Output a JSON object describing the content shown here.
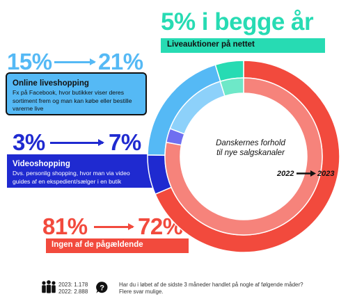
{
  "colors": {
    "teal": "#27dbb3",
    "teal_light": "#6ee8c8",
    "sky": "#55b9f5",
    "sky_light": "#8dd1fa",
    "navy": "#1f2ad0",
    "navy_light": "#6f6ff0",
    "red": "#f24a3d",
    "red_light": "#f6837b",
    "ink": "#111111"
  },
  "liveauktioner": {
    "headline": "5% i begge år",
    "label": "Liveauktioner på nettet"
  },
  "online": {
    "from": "15%",
    "to": "21%",
    "title": "Online liveshopping",
    "desc": "Fx på Facebook, hvor butikker viser deres sortiment frem og man kan købe eller bestille varerne live"
  },
  "video": {
    "from": "3%",
    "to": "7%",
    "title": "Videoshopping",
    "desc": "Dvs. personlig shopping, hvor man via video guides af en ekspedient/sælger i en butik"
  },
  "ingen": {
    "from": "81%",
    "to": "72%",
    "title": "Ingen af de pågældende"
  },
  "center_title": [
    "Danskernes forhold",
    "til nye salgskanaler"
  ],
  "legend": {
    "from": "2022",
    "to": "2023"
  },
  "footer": {
    "count_2023": "2023: 1.178",
    "count_2022": "2022: 2.888",
    "question": "Har du i løbet af de sidste 3 måneder handlet på nogle af følgende måder?",
    "note": "Flere svar mulige."
  },
  "chart_data": {
    "type": "pie",
    "variant": "concentric-donut",
    "title": "Danskernes forhold til nye salgskanaler",
    "categories": [
      "Liveauktioner på nettet",
      "Online liveshopping",
      "Videoshopping",
      "Ingen af de pågældende"
    ],
    "series": [
      {
        "name": "2022",
        "ring": "inner",
        "values": [
          5,
          15,
          3,
          81
        ]
      },
      {
        "name": "2023",
        "ring": "outer",
        "values": [
          5,
          21,
          7,
          72
        ]
      }
    ]
  }
}
